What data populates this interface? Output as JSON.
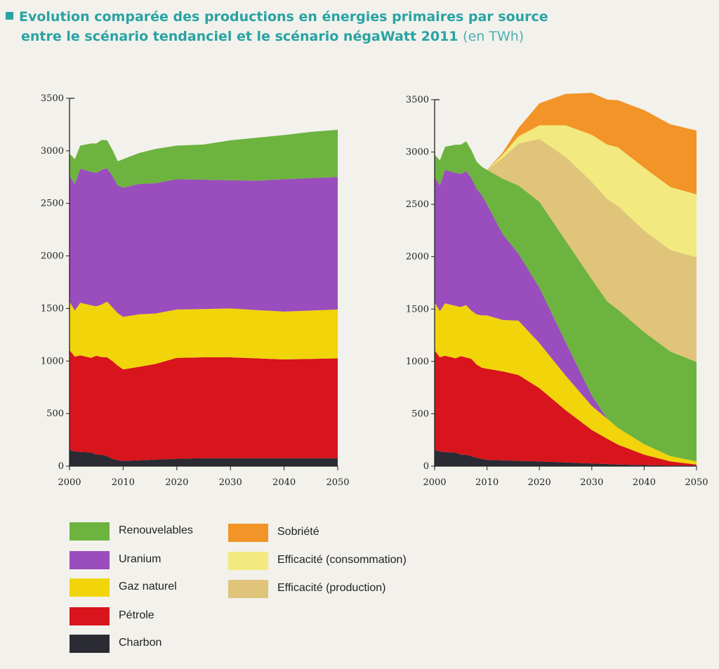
{
  "title": {
    "line1": "Evolution comparée des productions en énergies primaires par source",
    "line2": "entre le scénario tendanciel et le scénario négaWatt 2011",
    "unit": "(en TWh)"
  },
  "legend": [
    {
      "label": "Renouvelables",
      "color": "#6db33f"
    },
    {
      "label": "Uranium",
      "color": "#9a4dbd"
    },
    {
      "label": "Gaz naturel",
      "color": "#f1d40a"
    },
    {
      "label": "Pétrole",
      "color": "#d8141c"
    },
    {
      "label": "Charbon",
      "color": "#2b2b33"
    },
    {
      "label": "Sobriété",
      "color": "#f29427"
    },
    {
      "label": "Efficacité (consommation)",
      "color": "#f2ea7e"
    },
    {
      "label": "Efficacité (production)",
      "color": "#e0c47a"
    }
  ],
  "chart_data": [
    {
      "type": "area",
      "stacked": true,
      "x": [
        2000,
        2001,
        2002,
        2004,
        2005,
        2006,
        2007,
        2008,
        2009,
        2010,
        2013,
        2016,
        2020,
        2025,
        2030,
        2035,
        2040,
        2045,
        2050
      ],
      "xticks": [
        2000,
        2010,
        2020,
        2030,
        2040,
        2050
      ],
      "ylim": [
        0,
        3500
      ],
      "yticks": [
        0,
        500,
        1000,
        1500,
        2000,
        2500,
        3000,
        3500
      ],
      "series": [
        {
          "name": "Charbon",
          "values": [
            155,
            140,
            135,
            130,
            110,
            108,
            95,
            70,
            55,
            50,
            55,
            62,
            70,
            75,
            75,
            75,
            75,
            75,
            75
          ]
        },
        {
          "name": "Pétrole",
          "values": [
            950,
            900,
            920,
            900,
            940,
            930,
            940,
            930,
            900,
            870,
            890,
            910,
            960,
            960,
            960,
            950,
            940,
            945,
            950
          ]
        },
        {
          "name": "Gaz naturel",
          "values": [
            460,
            440,
            500,
            500,
            470,
            500,
            530,
            510,
            500,
            500,
            500,
            480,
            460,
            460,
            465,
            460,
            455,
            460,
            465
          ]
        },
        {
          "name": "Uranium",
          "values": [
            1200,
            1200,
            1275,
            1270,
            1270,
            1280,
            1270,
            1250,
            1215,
            1230,
            1240,
            1240,
            1240,
            1230,
            1220,
            1230,
            1260,
            1260,
            1260
          ]
        },
        {
          "name": "Renouvelables",
          "values": [
            210,
            240,
            220,
            270,
            280,
            285,
            265,
            250,
            230,
            270,
            295,
            325,
            320,
            335,
            380,
            410,
            420,
            440,
            450
          ]
        }
      ]
    },
    {
      "type": "area",
      "stacked": true,
      "x": [
        2000,
        2001,
        2002,
        2004,
        2005,
        2006,
        2007,
        2008,
        2009,
        2010,
        2013,
        2016,
        2020,
        2025,
        2030,
        2033,
        2035,
        2040,
        2045,
        2050
      ],
      "xticks": [
        2000,
        2010,
        2020,
        2030,
        2040,
        2050
      ],
      "ylim": [
        0,
        3500
      ],
      "yticks": [
        0,
        500,
        1000,
        1500,
        2000,
        2500,
        3000,
        3500
      ],
      "series": [
        {
          "name": "Charbon",
          "values": [
            155,
            140,
            135,
            130,
            110,
            108,
            95,
            80,
            70,
            60,
            55,
            50,
            45,
            35,
            25,
            20,
            15,
            10,
            5,
            5
          ]
        },
        {
          "name": "Pétrole",
          "values": [
            950,
            900,
            920,
            900,
            940,
            930,
            930,
            890,
            870,
            870,
            850,
            820,
            700,
            500,
            320,
            240,
            190,
            100,
            40,
            10
          ]
        },
        {
          "name": "Gaz naturel",
          "values": [
            460,
            440,
            500,
            500,
            470,
            500,
            460,
            480,
            500,
            510,
            490,
            520,
            430,
            330,
            230,
            190,
            160,
            100,
            50,
            30
          ]
        },
        {
          "name": "Uranium",
          "values": [
            1200,
            1200,
            1275,
            1270,
            1270,
            1280,
            1270,
            1200,
            1150,
            1060,
            820,
            640,
            530,
            320,
            100,
            0,
            0,
            0,
            0,
            0
          ]
        },
        {
          "name": "Renouvelables",
          "values": [
            210,
            240,
            220,
            270,
            280,
            285,
            265,
            260,
            270,
            330,
            530,
            650,
            820,
            970,
            1110,
            1120,
            1130,
            1070,
            1000,
            950
          ]
        },
        {
          "name": "Efficacité (production)",
          "values": [
            0,
            0,
            0,
            0,
            0,
            0,
            0,
            0,
            0,
            0,
            200,
            400,
            600,
            800,
            930,
            980,
            990,
            970,
            970,
            1000
          ]
        },
        {
          "name": "Efficacité (consommation)",
          "values": [
            0,
            0,
            0,
            0,
            0,
            0,
            0,
            0,
            0,
            0,
            30,
            70,
            130,
            300,
            450,
            520,
            560,
            600,
            600,
            600
          ]
        },
        {
          "name": "Sobriété",
          "values": [
            0,
            0,
            0,
            0,
            0,
            0,
            0,
            0,
            0,
            0,
            20,
            80,
            210,
            300,
            400,
            430,
            450,
            550,
            600,
            610
          ]
        }
      ]
    }
  ]
}
